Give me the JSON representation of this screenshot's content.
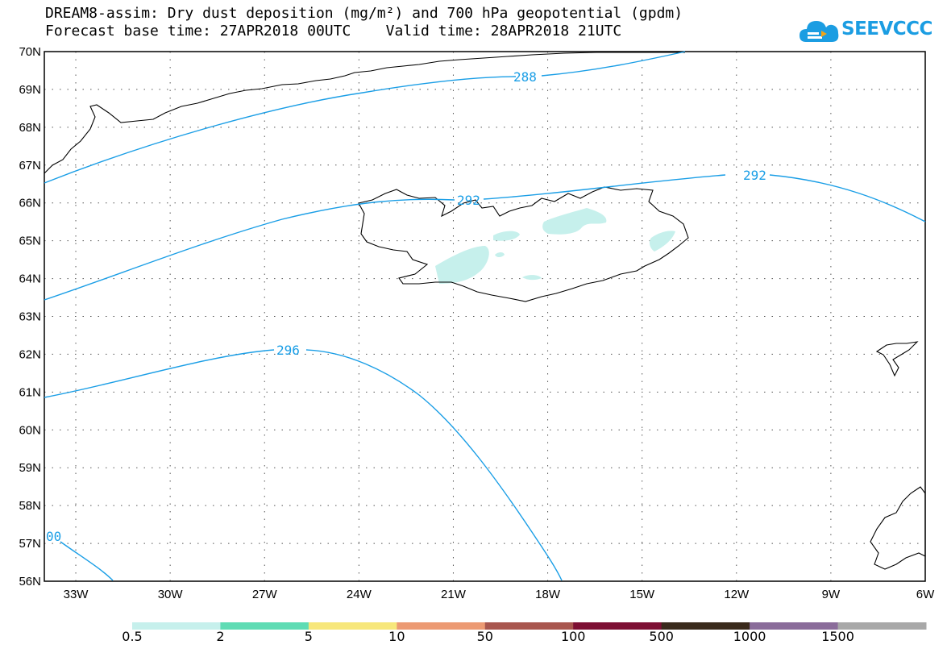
{
  "title": {
    "line1": "DREAM8-assim: Dry dust deposition (mg/m²) and 700 hPa geopotential (gpdm)",
    "line2": "Forecast base time: 27APR2018 00UTC    Valid time: 28APR2018 21UTC"
  },
  "logo": {
    "text": "SEEVCCC",
    "icon": "cloud-icon"
  },
  "map": {
    "lat_range": [
      56,
      70
    ],
    "lon_range": [
      -34,
      -6
    ],
    "lat_labels": [
      "70N",
      "69N",
      "68N",
      "67N",
      "66N",
      "65N",
      "64N",
      "63N",
      "62N",
      "61N",
      "60N",
      "59N",
      "58N",
      "57N",
      "56N"
    ],
    "lon_labels": [
      "33W",
      "30W",
      "27W",
      "24W",
      "21W",
      "18W",
      "15W",
      "12W",
      "9W",
      "6W"
    ],
    "contours": [
      {
        "label": "288",
        "color": "#1a9ee6"
      },
      {
        "label": "292",
        "color": "#1a9ee6"
      },
      {
        "label": "292",
        "color": "#1a9ee6"
      },
      {
        "label": "296",
        "color": "#1a9ee6"
      },
      {
        "label": "00",
        "color": "#1a9ee6"
      }
    ]
  },
  "legend": {
    "colors": [
      "#c6f0ec",
      "#5fdcb4",
      "#f7e77b",
      "#ec9a73",
      "#a8564e",
      "#7d0f33",
      "#3a2a1c",
      "#8a6c9a",
      "#a8a8a8"
    ],
    "labels": [
      "0.5",
      "2",
      "5",
      "10",
      "50",
      "100",
      "500",
      "1000",
      "1500"
    ]
  }
}
